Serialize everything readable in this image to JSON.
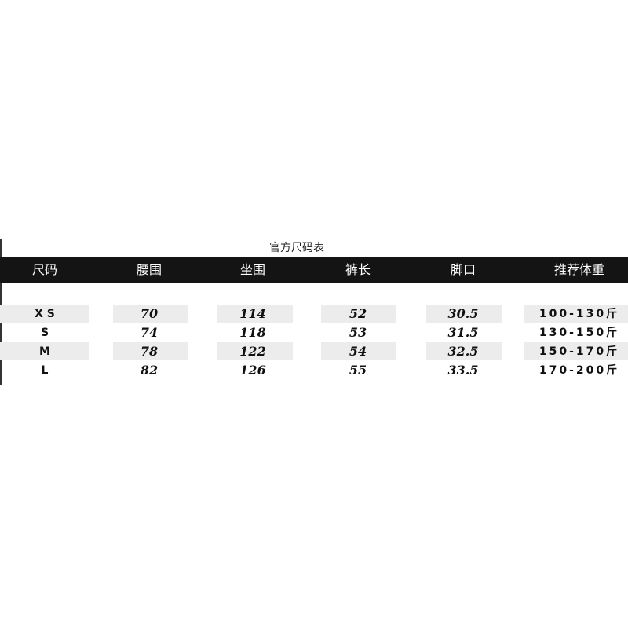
{
  "title": "官方尺码表",
  "headers": [
    "尺码",
    "腰围",
    "坐围",
    "裤长",
    "脚口",
    "推荐体重"
  ],
  "rows": [
    [
      "X S",
      "70",
      "114",
      "52",
      "30.5",
      "100-130斤"
    ],
    [
      "S",
      "74",
      "118",
      "53",
      "31.5",
      "130-150斤"
    ],
    [
      "M",
      "78",
      "122",
      "54",
      "32.5",
      "150-170斤"
    ],
    [
      "L",
      "82",
      "126",
      "55",
      "33.5",
      "170-200斤"
    ]
  ]
}
